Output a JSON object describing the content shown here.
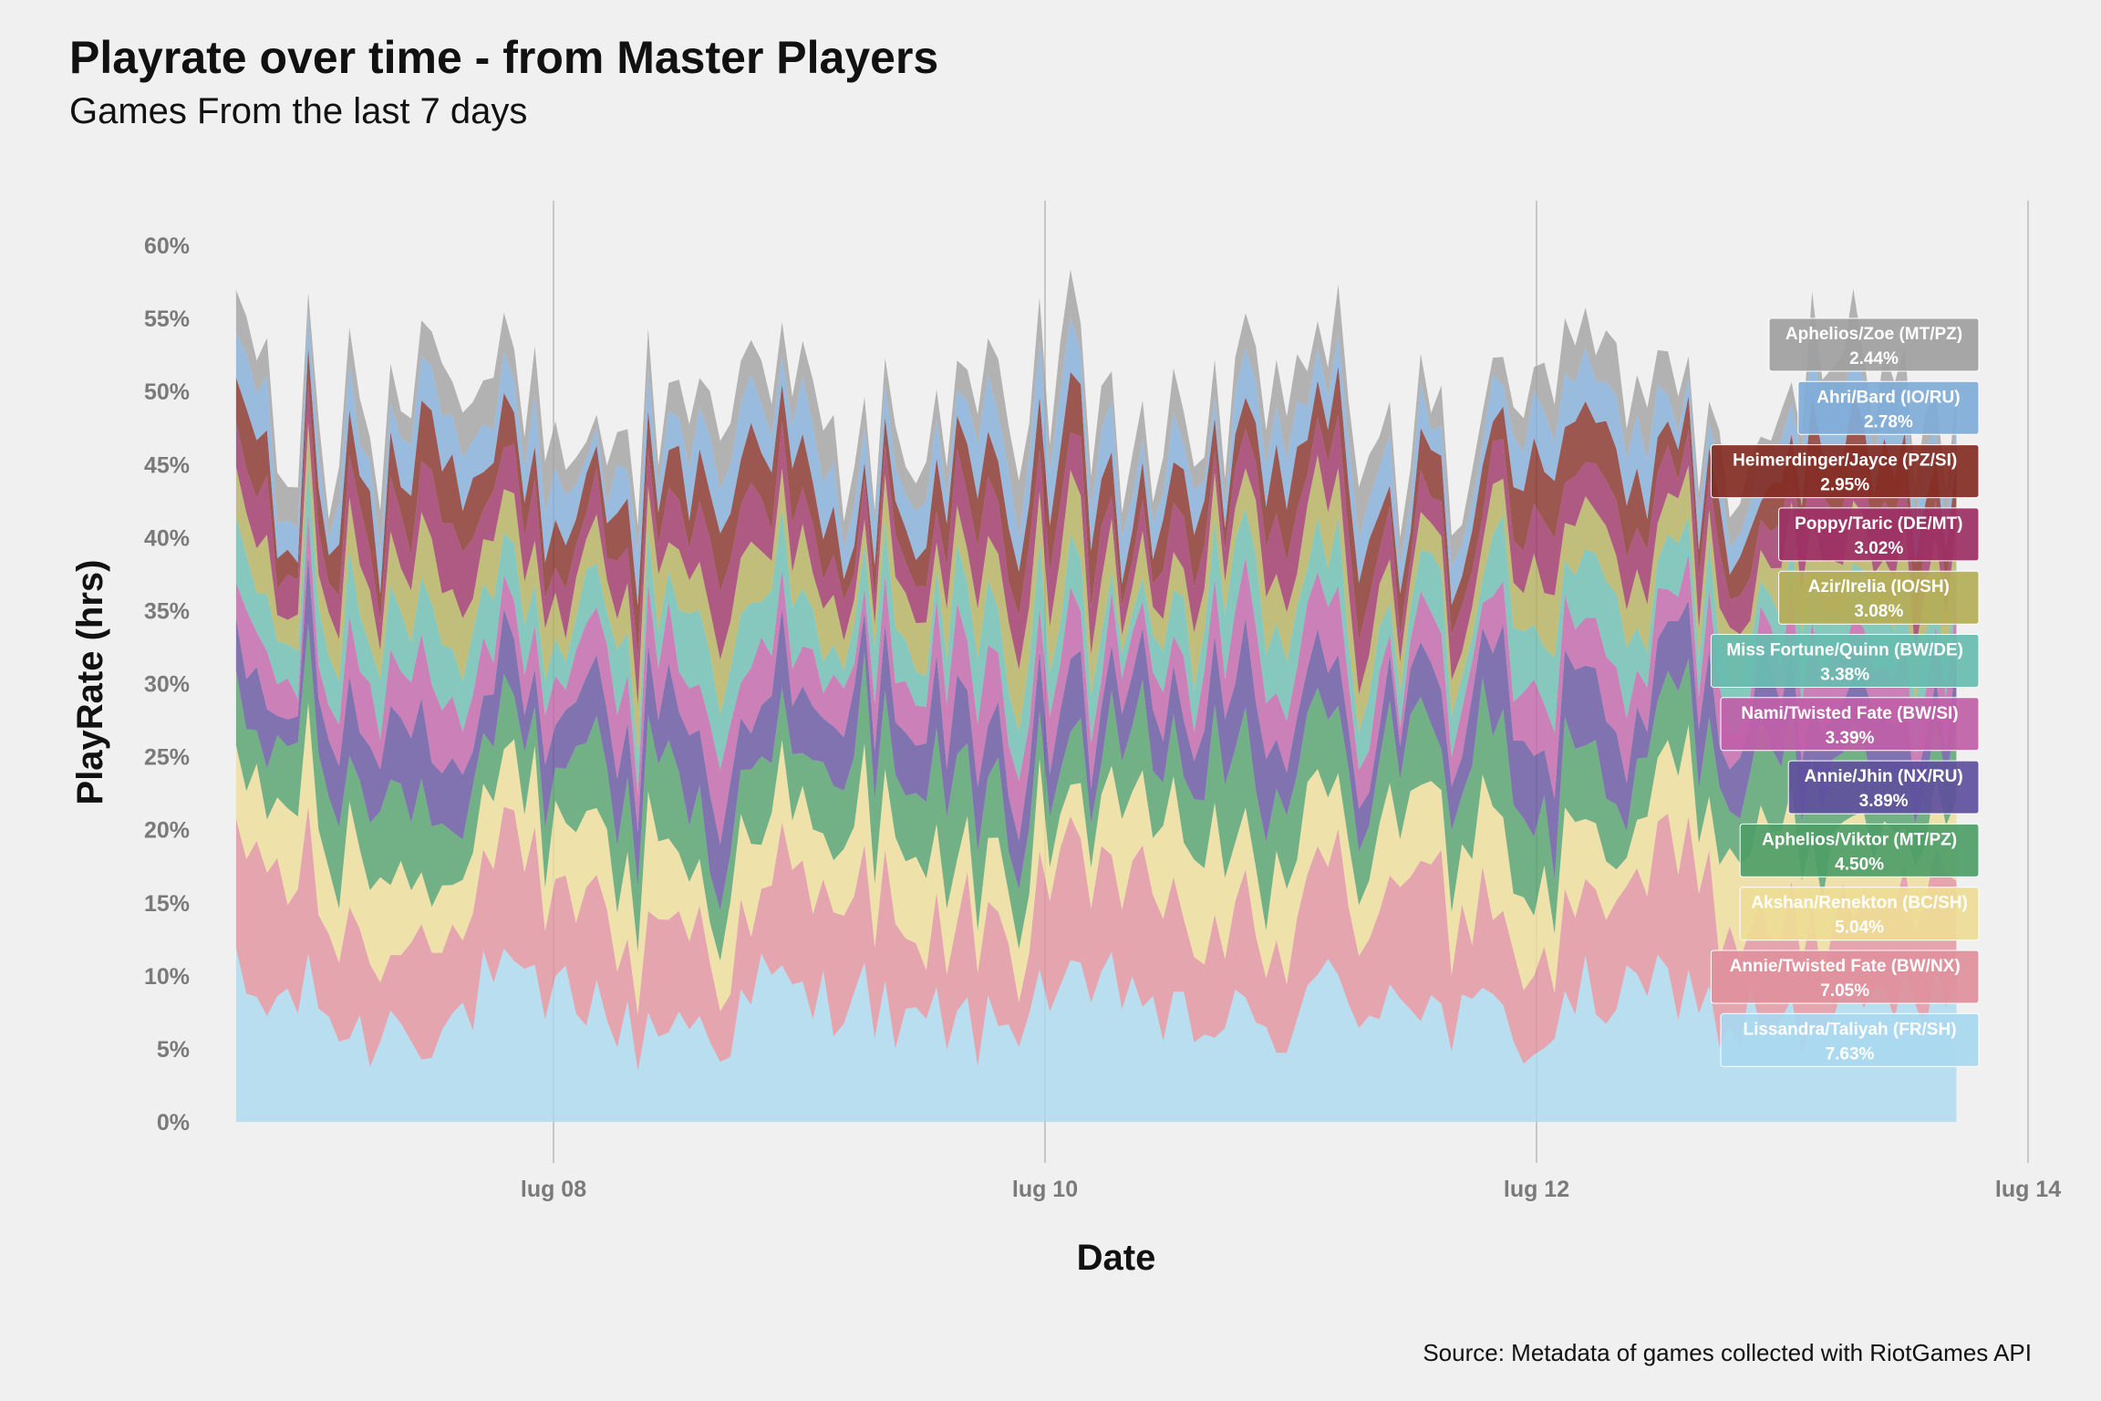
{
  "header": {
    "title": "Playrate over time - from Master Players",
    "subtitle": "Games From the last 7 days"
  },
  "caption": "Source: Metadata of games collected with RiotGames API",
  "chart_data": {
    "type": "area",
    "stacked": true,
    "title": "Playrate over time - from Master Players",
    "subtitle": "Games From the last 7 days",
    "xlabel": "Date",
    "ylabel": "PlayRate (hrs)",
    "x_tick_labels": [
      "lug 08",
      "lug 10",
      "lug 12",
      "lug 14"
    ],
    "x_ticks": [
      "2022-07-08",
      "2022-07-10",
      "2022-07-12",
      "2022-07-14"
    ],
    "xlim": [
      "2022-07-06 17:00",
      "2022-07-14 00:00"
    ],
    "ylim": [
      0,
      62
    ],
    "y_ticks": [
      0,
      5,
      10,
      15,
      20,
      25,
      30,
      35,
      40,
      45,
      50,
      55,
      60
    ],
    "y_tick_labels": [
      "0%",
      "5%",
      "10%",
      "15%",
      "20%",
      "25%",
      "30%",
      "35%",
      "40%",
      "45%",
      "50%",
      "55%",
      "60%"
    ],
    "grid": "vertical major only",
    "legend": "direct labels at right end",
    "x_start": "2022-07-06 17:00",
    "x_end": "2022-07-13 17:00",
    "points": 168,
    "series": [
      {
        "name": "Lissandra/Taliyah (FR/SH)",
        "label": "7.63%",
        "mean": 7.63,
        "color": "#a8d8f0"
      },
      {
        "name": "Annie/Twisted Fate (BW/NX)",
        "label": "7.05%",
        "mean": 7.05,
        "color": "#e0909c"
      },
      {
        "name": "Akshan/Renekton (BC/SH)",
        "label": "5.04%",
        "mean": 5.04,
        "color": "#eedc96"
      },
      {
        "name": "Aphelios/Viktor (MT/PZ)",
        "label": "4.50%",
        "mean": 4.5,
        "color": "#4e9e68"
      },
      {
        "name": "Annie/Jhin (NX/RU)",
        "label": "3.89%",
        "mean": 3.89,
        "color": "#60509e"
      },
      {
        "name": "Nami/Twisted Fate (BW/SI)",
        "label": "3.39%",
        "mean": 3.39,
        "color": "#c060a8"
      },
      {
        "name": "Miss Fortune/Quinn (BW/DE)",
        "label": "3.38%",
        "mean": 3.38,
        "color": "#68bcb0"
      },
      {
        "name": "Azir/Irelia (IO/SH)",
        "label": "3.08%",
        "mean": 3.08,
        "color": "#b4ae58"
      },
      {
        "name": "Poppy/Taric (DE/MT)",
        "label": "3.02%",
        "mean": 3.02,
        "color": "#9c3064"
      },
      {
        "name": "Heimerdinger/Jayce (PZ/SI)",
        "label": "2.95%",
        "mean": 2.95,
        "color": "#842c24"
      },
      {
        "name": "Ahri/Bard (IO/RU)",
        "label": "2.78%",
        "mean": 2.78,
        "color": "#80acd8"
      },
      {
        "name": "Aphelios/Zoe (MT/PZ)",
        "label": "2.44%",
        "mean": 2.44,
        "color": "#a0a0a0"
      }
    ]
  }
}
